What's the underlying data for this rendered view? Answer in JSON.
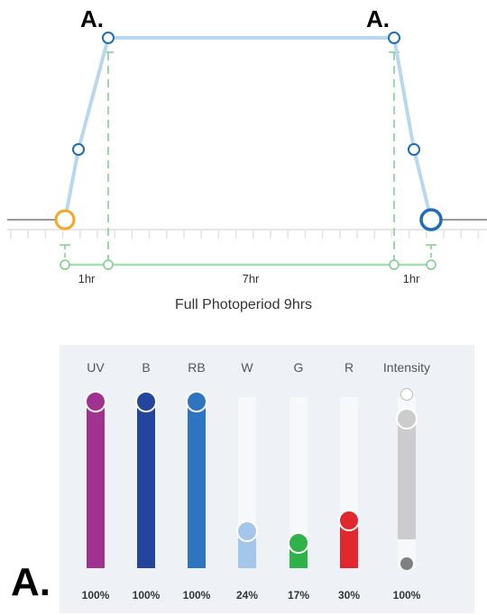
{
  "schedule": {
    "marker_left": "A.",
    "marker_right": "A.",
    "durations": {
      "ramp_up": "1hr",
      "hold": "7hr",
      "ramp_down": "1hr"
    },
    "caption": "Full Photoperiod 9hrs",
    "colors": {
      "line": "#b9d8f0",
      "node_stroke": "#1f6db5",
      "start_node": "#f5a623",
      "guide": "#7dcc8e",
      "baseline": "#999999"
    }
  },
  "channels_panel": {
    "marker": "A.",
    "channels": [
      {
        "label": "UV",
        "value": "100%",
        "level": 1.0,
        "color": "#a0338f"
      },
      {
        "label": "B",
        "value": "100%",
        "level": 1.0,
        "color": "#23469c"
      },
      {
        "label": "RB",
        "value": "100%",
        "level": 1.0,
        "color": "#2e74be"
      },
      {
        "label": "W",
        "value": "24%",
        "level": 0.24,
        "color": "#a4c6ea"
      },
      {
        "label": "G",
        "value": "17%",
        "level": 0.17,
        "color": "#2fb24a"
      },
      {
        "label": "R",
        "value": "30%",
        "level": 0.3,
        "color": "#e0282e"
      },
      {
        "label": "Intensity",
        "value": "100%",
        "level": 1.0,
        "color": "#cccccc"
      }
    ]
  }
}
